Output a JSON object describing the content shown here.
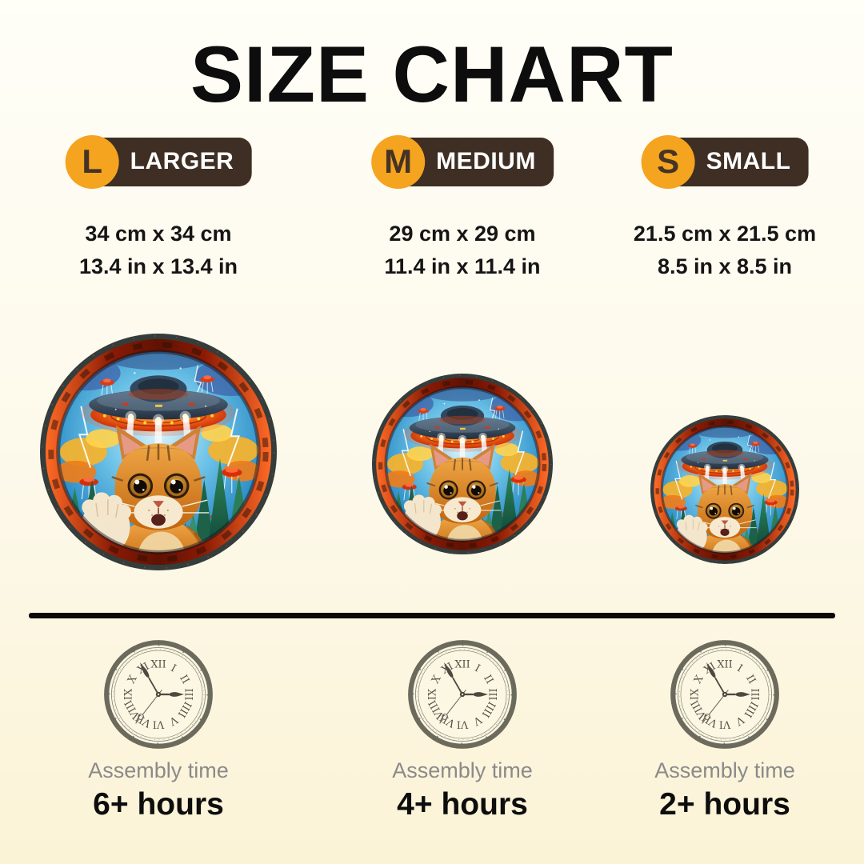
{
  "title": "SIZE CHART",
  "sizes": [
    {
      "letter": "L",
      "label": "LARGER",
      "dim_cm": "34 cm x 34 cm",
      "dim_in": "13.4 in x 13.4 in",
      "assembly_label": "Assembly time",
      "assembly_hours": "6+ hours"
    },
    {
      "letter": "M",
      "label": "MEDIUM",
      "dim_cm": "29 cm x 29 cm",
      "dim_in": "11.4 in x 11.4 in",
      "assembly_label": "Assembly time",
      "assembly_hours": "4+ hours"
    },
    {
      "letter": "S",
      "label": "SMALL",
      "dim_cm": "21.5 cm x 21.5 cm",
      "dim_in": "8.5 in x 8.5 in",
      "assembly_label": "Assembly time",
      "assembly_hours": "2+ hours"
    }
  ],
  "clock": {
    "numerals": [
      "I",
      "II",
      "III",
      "IIII",
      "V",
      "VI",
      "VII",
      "VIII",
      "IX",
      "X",
      "XI",
      "XII"
    ]
  },
  "colors": {
    "badge_orange": "#F5A41F",
    "badge_brown": "#3E2E23",
    "background_top": "#FFFEF7",
    "background_bottom": "#FBF3D6",
    "divider": "#0A0A0A",
    "assembly_gray": "#8A8A8A",
    "clock_rim": "#6C6A5C",
    "title_black": "#0D0D0D"
  }
}
